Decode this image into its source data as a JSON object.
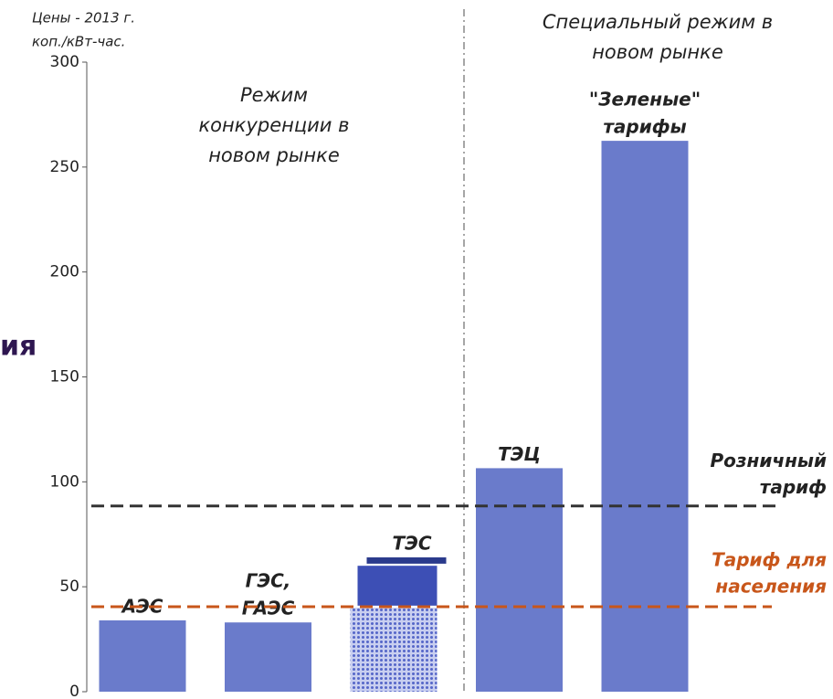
{
  "chart_data": {
    "type": "bar",
    "cut_title": "ия",
    "axis_note": [
      "Цены - 2013 г.",
      "коп./кВт-час."
    ],
    "regions": [
      {
        "label": [
          "Режим",
          "конкуренции в",
          "новом рынке"
        ]
      },
      {
        "label": [
          "Специальный режим в",
          "новом рынке"
        ]
      }
    ],
    "categories": [
      [
        "АЭС"
      ],
      [
        "ГЭС,",
        "ГАЭС"
      ],
      [
        "ТЭС"
      ],
      [
        "ТЭЦ"
      ],
      [
        "\"Зеленые\"",
        "тарифы"
      ]
    ],
    "values": [
      34,
      33,
      40,
      106.5,
      262.5
    ],
    "color": "#6a7bcb",
    "textured": [
      false,
      false,
      true,
      false,
      false
    ],
    "ranges": [
      {
        "index": 2,
        "low": 41,
        "high": 60,
        "color": "#3d4fb5"
      },
      {
        "index": 2,
        "low": 61,
        "high": 64,
        "color": "#2a3a8c"
      }
    ],
    "reference_lines": [
      {
        "label": [
          "Розничный",
          "тариф"
        ],
        "value": 88.5,
        "color": "#333333"
      },
      {
        "label": [
          "Тариф для",
          "населения"
        ],
        "value": 40.5,
        "color": "#c8561a"
      }
    ],
    "ylim": [
      0,
      300
    ],
    "yticks": [
      0,
      50,
      100,
      150,
      200,
      250,
      300
    ]
  }
}
